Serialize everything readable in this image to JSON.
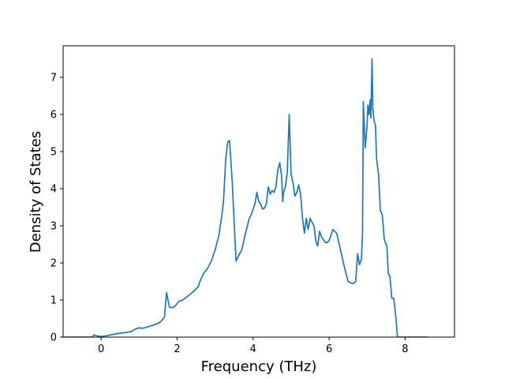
{
  "chart_data": {
    "type": "line",
    "title": "",
    "xlabel": "Frequency (THz)",
    "ylabel": "Density of States",
    "xlim": [
      -1.0,
      9.3
    ],
    "ylim": [
      0,
      7.85
    ],
    "xticks": [
      0,
      2,
      4,
      6,
      8
    ],
    "yticks": [
      0,
      1,
      2,
      3,
      4,
      5,
      6,
      7
    ],
    "grid": false,
    "series": [
      {
        "color": "#1f77b4",
        "x": [
          -0.98,
          -0.5,
          -0.25,
          -0.18,
          -0.1,
          0.0,
          0.1,
          0.2,
          0.4,
          0.6,
          0.8,
          0.9,
          1.0,
          1.1,
          1.3,
          1.45,
          1.55,
          1.62,
          1.67,
          1.72,
          1.8,
          1.9,
          1.95,
          2.05,
          2.15,
          2.3,
          2.45,
          2.55,
          2.62,
          2.7,
          2.8,
          2.9,
          3.0,
          3.1,
          3.18,
          3.22,
          3.28,
          3.33,
          3.38,
          3.45,
          3.55,
          3.62,
          3.7,
          3.8,
          3.9,
          3.95,
          4.0,
          4.05,
          4.1,
          4.15,
          4.2,
          4.25,
          4.3,
          4.35,
          4.4,
          4.45,
          4.5,
          4.55,
          4.6,
          4.65,
          4.7,
          4.75,
          4.78,
          4.8,
          4.85,
          4.9,
          4.95,
          5.0,
          5.05,
          5.1,
          5.15,
          5.2,
          5.25,
          5.3,
          5.35,
          5.4,
          5.45,
          5.5,
          5.55,
          5.6,
          5.65,
          5.7,
          5.75,
          5.8,
          5.9,
          5.95,
          6.0,
          6.05,
          6.1,
          6.2,
          6.3,
          6.4,
          6.5,
          6.6,
          6.65,
          6.7,
          6.75,
          6.8,
          6.85,
          6.88,
          6.9,
          6.95,
          7.0,
          7.02,
          7.05,
          7.08,
          7.1,
          7.13,
          7.15,
          7.18,
          7.22,
          7.25,
          7.3,
          7.35,
          7.4,
          7.45,
          7.48,
          7.52,
          7.56,
          7.6,
          7.65,
          7.7,
          7.75,
          7.8,
          7.85,
          8.0,
          8.3,
          8.6
        ],
        "y": [
          0,
          0,
          0,
          0.06,
          0.03,
          0.02,
          0.03,
          0.05,
          0.09,
          0.12,
          0.15,
          0.22,
          0.25,
          0.24,
          0.3,
          0.35,
          0.4,
          0.48,
          0.55,
          1.2,
          0.8,
          0.8,
          0.84,
          0.97,
          1.0,
          1.12,
          1.25,
          1.35,
          1.55,
          1.72,
          1.85,
          2.05,
          2.35,
          2.75,
          3.3,
          3.65,
          4.8,
          5.25,
          5.3,
          4.2,
          2.05,
          2.2,
          2.35,
          2.8,
          3.2,
          3.3,
          3.45,
          3.6,
          3.9,
          3.65,
          3.58,
          3.45,
          3.48,
          3.6,
          4.05,
          3.85,
          3.95,
          3.9,
          4.05,
          4.5,
          4.7,
          4.35,
          3.65,
          3.9,
          4.05,
          4.45,
          6.0,
          4.4,
          4.15,
          3.8,
          3.9,
          4.1,
          3.85,
          3.2,
          2.8,
          3.2,
          2.9,
          3.2,
          3.1,
          3.0,
          2.6,
          2.45,
          2.85,
          2.7,
          2.55,
          2.55,
          2.6,
          2.75,
          2.9,
          2.8,
          2.35,
          1.9,
          1.5,
          1.45,
          1.45,
          1.5,
          2.25,
          1.95,
          2.1,
          2.8,
          6.35,
          5.1,
          5.7,
          6.25,
          6.0,
          6.4,
          5.9,
          7.5,
          6.2,
          5.85,
          5.7,
          4.8,
          4.4,
          3.4,
          3.3,
          2.65,
          2.55,
          2.45,
          1.7,
          1.65,
          1.05,
          1.05,
          0.6,
          0,
          0,
          0,
          0,
          0
        ]
      }
    ]
  }
}
